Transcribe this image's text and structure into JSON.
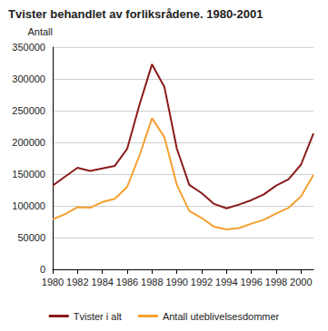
{
  "chart_data": {
    "type": "line",
    "title": "Tvister behandlet av forliksrådene. 1980-2001",
    "y_label": "Antall",
    "x": [
      1980,
      1981,
      1982,
      1983,
      1984,
      1985,
      1986,
      1987,
      1988,
      1989,
      1990,
      1991,
      1992,
      1993,
      1994,
      1995,
      1996,
      1997,
      1998,
      1999,
      2000,
      2001
    ],
    "series": [
      {
        "name": "Tvister i alt",
        "color": "#8b1a1a",
        "line_style": "solid",
        "marker": "none",
        "values": [
          132000,
          146000,
          160000,
          155000,
          159000,
          163000,
          190000,
          260000,
          323000,
          287000,
          190000,
          133000,
          120000,
          103000,
          96000,
          102000,
          109000,
          118000,
          132000,
          142000,
          165000,
          214000
        ]
      },
      {
        "name": "Antall uteblivelsesdommer",
        "color": "#f5a030",
        "line_style": "solid",
        "marker": "none",
        "values": [
          79000,
          87000,
          98000,
          97000,
          106000,
          111000,
          130000,
          180000,
          238000,
          208000,
          133000,
          92000,
          81000,
          67000,
          63000,
          65000,
          72000,
          78000,
          88000,
          97000,
          115000,
          149000
        ]
      }
    ],
    "xlim": [
      1980,
      2001
    ],
    "xticks": [
      1980,
      1982,
      1984,
      1986,
      1988,
      1990,
      1992,
      1994,
      1996,
      1998,
      2000
    ],
    "ylim": [
      0,
      350000
    ],
    "yticks": [
      0,
      50000,
      100000,
      150000,
      200000,
      250000,
      300000,
      350000
    ],
    "grid": true,
    "legend": "bottom"
  }
}
